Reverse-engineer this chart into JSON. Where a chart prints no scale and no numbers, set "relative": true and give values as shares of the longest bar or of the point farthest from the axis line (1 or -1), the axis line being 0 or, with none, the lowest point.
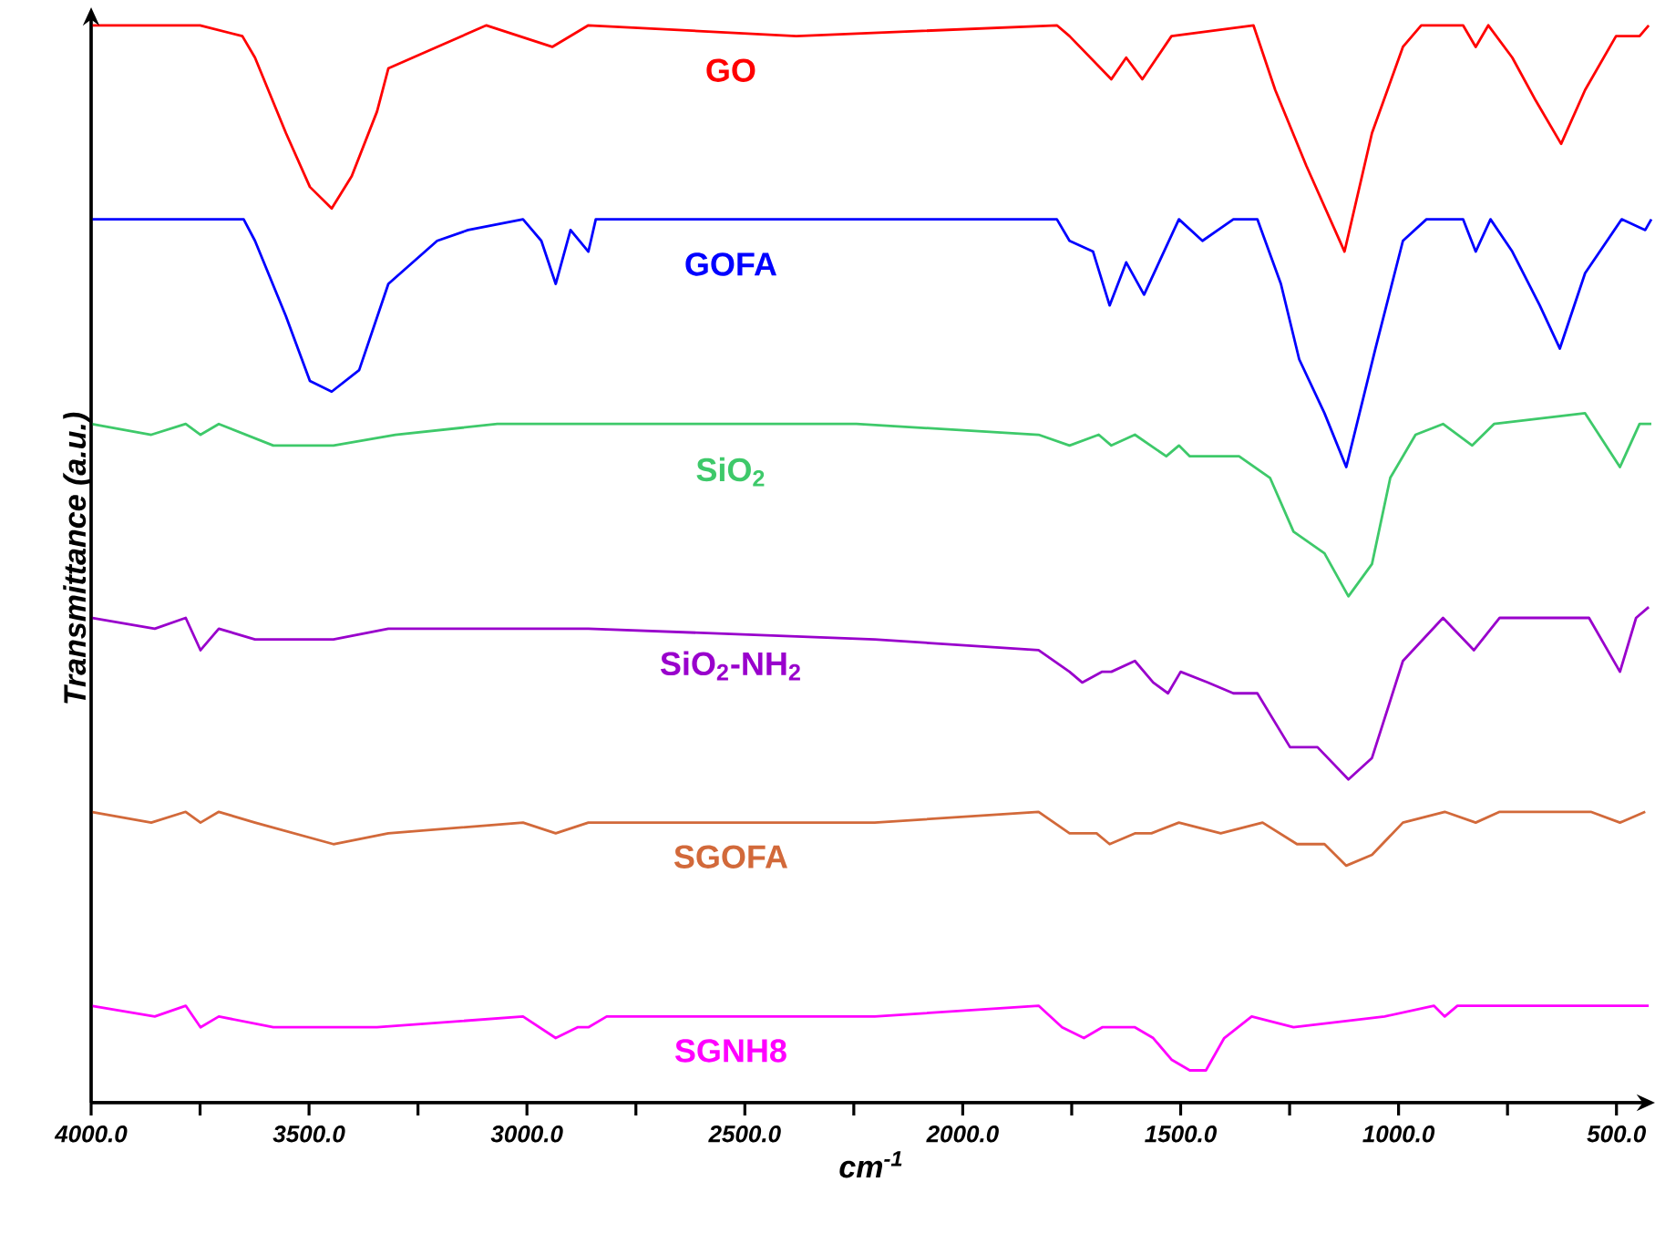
{
  "chart_data": {
    "type": "line",
    "relative": true,
    "xlabel": "cm$^{-1}$",
    "ylabel": "Transmittance (a.u.)",
    "xlim": [
      4000,
      420
    ],
    "xticks": [
      {
        "value": 4000,
        "label": "4000.0"
      },
      {
        "value": 3750,
        "label": null
      },
      {
        "value": 3500,
        "label": "3500.0"
      },
      {
        "value": 3250,
        "label": null
      },
      {
        "value": 3000,
        "label": "3000.0"
      },
      {
        "value": 2750,
        "label": null
      },
      {
        "value": 2500,
        "label": "2500.0"
      },
      {
        "value": 2250,
        "label": null
      },
      {
        "value": 2000,
        "label": "2000.0"
      },
      {
        "value": 1750,
        "label": null
      },
      {
        "value": 1500,
        "label": "1500.0"
      },
      {
        "value": 1250,
        "label": null
      },
      {
        "value": 1000,
        "label": "1000.0"
      },
      {
        "value": 750,
        "label": null
      },
      {
        "value": 500,
        "label": "500.0"
      }
    ],
    "marker": "none",
    "line_style": "solid",
    "series": [
      {
        "name": "GO",
        "color": "#ff0000",
        "x": [
          4000,
          3750,
          3653,
          3624,
          3553,
          3498,
          3448,
          3402,
          3344,
          3318,
          3206,
          3093,
          2942,
          2859,
          2382,
          1784,
          1755,
          1659,
          1625,
          1588,
          1521,
          1333,
          1283,
          1212,
          1124,
          1061,
          990,
          948,
          852,
          823,
          794,
          739,
          685,
          627,
          572,
          501,
          447,
          426
        ],
        "values": [
          1.0,
          1.0,
          0.99,
          0.97,
          0.9,
          0.85,
          0.83,
          0.86,
          0.92,
          0.96,
          0.98,
          1.0,
          0.98,
          1.0,
          0.99,
          1.0,
          0.99,
          0.95,
          0.97,
          0.95,
          0.99,
          1.0,
          0.94,
          0.87,
          0.79,
          0.9,
          0.98,
          1.0,
          1.0,
          0.98,
          1.0,
          0.97,
          0.93,
          0.89,
          0.94,
          0.99,
          0.99,
          1.0
        ]
      },
      {
        "name": "GOFA",
        "color": "#0000ff",
        "x": [
          4000,
          3650,
          3624,
          3553,
          3498,
          3448,
          3385,
          3318,
          3206,
          3135,
          3009,
          2967,
          2934,
          2900,
          2859,
          2842,
          1784,
          1755,
          1701,
          1663,
          1625,
          1584,
          1504,
          1450,
          1379,
          1324,
          1270,
          1228,
          1170,
          1120,
          1053,
          990,
          936,
          852,
          823,
          789,
          739,
          676,
          630,
          572,
          488,
          434,
          420
        ],
        "values": [
          0.82,
          0.82,
          0.8,
          0.73,
          0.67,
          0.66,
          0.68,
          0.76,
          0.8,
          0.81,
          0.82,
          0.8,
          0.76,
          0.81,
          0.79,
          0.82,
          0.82,
          0.8,
          0.79,
          0.74,
          0.78,
          0.75,
          0.82,
          0.8,
          0.82,
          0.82,
          0.76,
          0.69,
          0.64,
          0.59,
          0.7,
          0.8,
          0.82,
          0.82,
          0.79,
          0.82,
          0.79,
          0.74,
          0.7,
          0.77,
          0.82,
          0.81,
          0.82
        ]
      },
      {
        "name": "SiO$_{2}$",
        "color": "#3ec96a",
        "x": [
          4000,
          3862,
          3783,
          3749,
          3707,
          3582,
          3444,
          3302,
          3068,
          2934,
          2829,
          2244,
          1826,
          1755,
          1688,
          1659,
          1605,
          1533,
          1504,
          1479,
          1366,
          1295,
          1241,
          1170,
          1115,
          1061,
          1019,
          961,
          898,
          831,
          781,
          572,
          492,
          447,
          420
        ],
        "values": [
          0.63,
          0.62,
          0.63,
          0.62,
          0.63,
          0.61,
          0.61,
          0.62,
          0.63,
          0.63,
          0.63,
          0.63,
          0.62,
          0.61,
          0.62,
          0.61,
          0.62,
          0.6,
          0.61,
          0.6,
          0.6,
          0.58,
          0.53,
          0.51,
          0.47,
          0.5,
          0.58,
          0.62,
          0.63,
          0.61,
          0.63,
          0.64,
          0.59,
          0.63,
          0.63
        ]
      },
      {
        "name": "SiO$_{2}$-NH$_{2}$",
        "color": "#9900cc",
        "x": [
          4000,
          3854,
          3783,
          3749,
          3707,
          3624,
          3444,
          3318,
          3164,
          2942,
          2859,
          2202,
          1826,
          1755,
          1726,
          1680,
          1659,
          1605,
          1563,
          1529,
          1500,
          1437,
          1379,
          1324,
          1249,
          1186,
          1115,
          1061,
          990,
          898,
          827,
          768,
          697,
          643,
          563,
          492,
          455,
          426
        ],
        "values": [
          0.45,
          0.44,
          0.45,
          0.42,
          0.44,
          0.43,
          0.43,
          0.44,
          0.44,
          0.44,
          0.44,
          0.43,
          0.42,
          0.4,
          0.39,
          0.4,
          0.4,
          0.41,
          0.39,
          0.38,
          0.4,
          0.39,
          0.38,
          0.38,
          0.33,
          0.33,
          0.3,
          0.32,
          0.41,
          0.45,
          0.42,
          0.45,
          0.45,
          0.45,
          0.45,
          0.4,
          0.45,
          0.46
        ]
      },
      {
        "name": "SGOFA",
        "color": "#d2693a",
        "x": [
          4000,
          3862,
          3783,
          3749,
          3707,
          3624,
          3444,
          3318,
          3009,
          2934,
          2859,
          2202,
          1826,
          1755,
          1693,
          1663,
          1605,
          1567,
          1504,
          1408,
          1312,
          1233,
          1170,
          1120,
          1061,
          990,
          894,
          823,
          768,
          559,
          492,
          434
        ],
        "values": [
          0.27,
          0.26,
          0.27,
          0.26,
          0.27,
          0.26,
          0.24,
          0.25,
          0.26,
          0.25,
          0.26,
          0.26,
          0.27,
          0.25,
          0.25,
          0.24,
          0.25,
          0.25,
          0.26,
          0.25,
          0.26,
          0.24,
          0.24,
          0.22,
          0.23,
          0.26,
          0.27,
          0.26,
          0.27,
          0.27,
          0.26,
          0.27
        ]
      },
      {
        "name": "SGNH8",
        "color": "#ff00ff",
        "x": [
          4000,
          3854,
          3783,
          3749,
          3707,
          3582,
          3344,
          3009,
          2934,
          2884,
          2859,
          2817,
          2202,
          1826,
          1772,
          1722,
          1680,
          1605,
          1563,
          1521,
          1479,
          1442,
          1400,
          1337,
          1241,
          1032,
          919,
          894,
          865,
          426
        ],
        "values": [
          0.09,
          0.08,
          0.09,
          0.07,
          0.08,
          0.07,
          0.07,
          0.08,
          0.06,
          0.07,
          0.07,
          0.08,
          0.08,
          0.09,
          0.07,
          0.06,
          0.07,
          0.07,
          0.06,
          0.04,
          0.03,
          0.03,
          0.06,
          0.08,
          0.07,
          0.08,
          0.09,
          0.08,
          0.09,
          0.09
        ]
      }
    ]
  }
}
